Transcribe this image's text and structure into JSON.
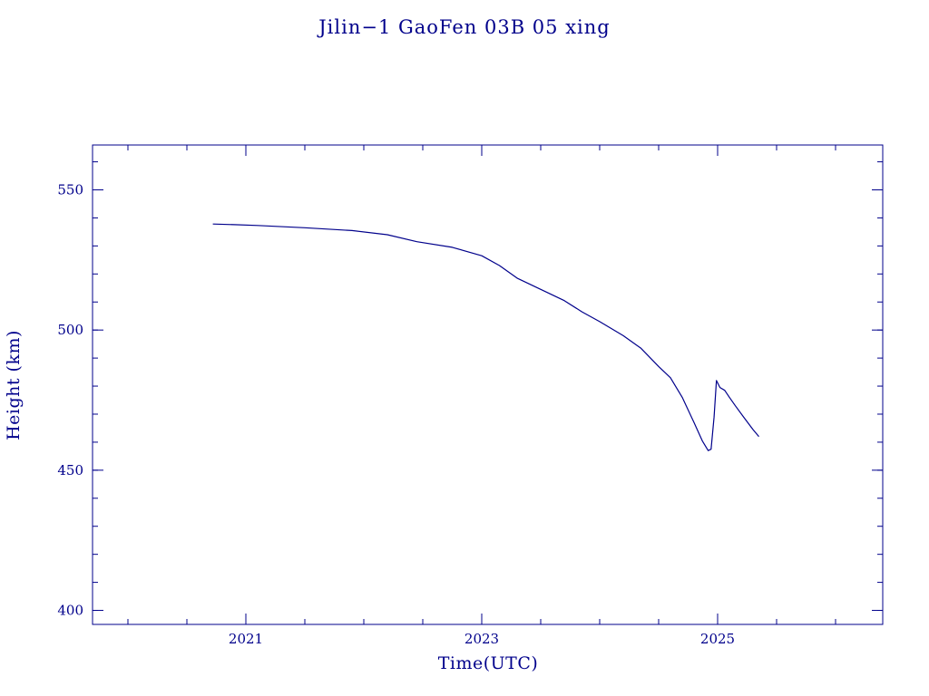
{
  "chart_data": {
    "type": "line",
    "title": "Jilin−1 GaoFen 03B 05 xing",
    "xlabel": "Time(UTC)",
    "ylabel": "Height (km)",
    "xlim": [
      2019.7,
      2026.4
    ],
    "ylim": [
      395,
      566
    ],
    "x_ticks": [
      2021,
      2023,
      2025
    ],
    "x_tick_labels": [
      "2021",
      "2023",
      "2025"
    ],
    "x_minor_ticks": [
      2020.0,
      2020.5,
      2021.0,
      2021.5,
      2022.0,
      2022.5,
      2023.0,
      2023.5,
      2024.0,
      2024.5,
      2025.0,
      2025.5,
      2026.0
    ],
    "y_ticks": [
      400,
      450,
      500,
      550
    ],
    "y_tick_labels": [
      "400",
      "450",
      "500",
      "550"
    ],
    "y_minor_ticks": [
      400,
      410,
      420,
      430,
      440,
      450,
      460,
      470,
      480,
      490,
      500,
      510,
      520,
      530,
      540,
      550,
      560
    ],
    "grid": false,
    "colors": {
      "foreground": "#00008b",
      "background": "#ffffff"
    },
    "series": [
      {
        "x": [
          2020.72,
          2020.9,
          2021.1,
          2021.5,
          2021.9,
          2022.2,
          2022.45,
          2022.75,
          2023.0,
          2023.15,
          2023.3,
          2023.5,
          2023.7,
          2023.85,
          2024.0,
          2024.2,
          2024.35,
          2024.5,
          2024.6,
          2024.7,
          2024.8,
          2024.87,
          2024.92,
          2024.945,
          2024.955,
          2024.97,
          2024.99,
          2025.02,
          2025.06,
          2025.1,
          2025.15,
          2025.22,
          2025.3,
          2025.35
        ],
        "y": [
          537.8,
          537.6,
          537.3,
          536.5,
          535.5,
          534.0,
          531.5,
          529.5,
          526.5,
          523.0,
          518.5,
          514.5,
          510.5,
          506.5,
          503.0,
          498.0,
          493.5,
          487.0,
          483.0,
          476.0,
          467.0,
          460.5,
          457.0,
          457.5,
          462.0,
          469.0,
          482.0,
          479.5,
          478.5,
          476.0,
          473.0,
          469.0,
          464.5,
          462.0
        ]
      }
    ]
  }
}
